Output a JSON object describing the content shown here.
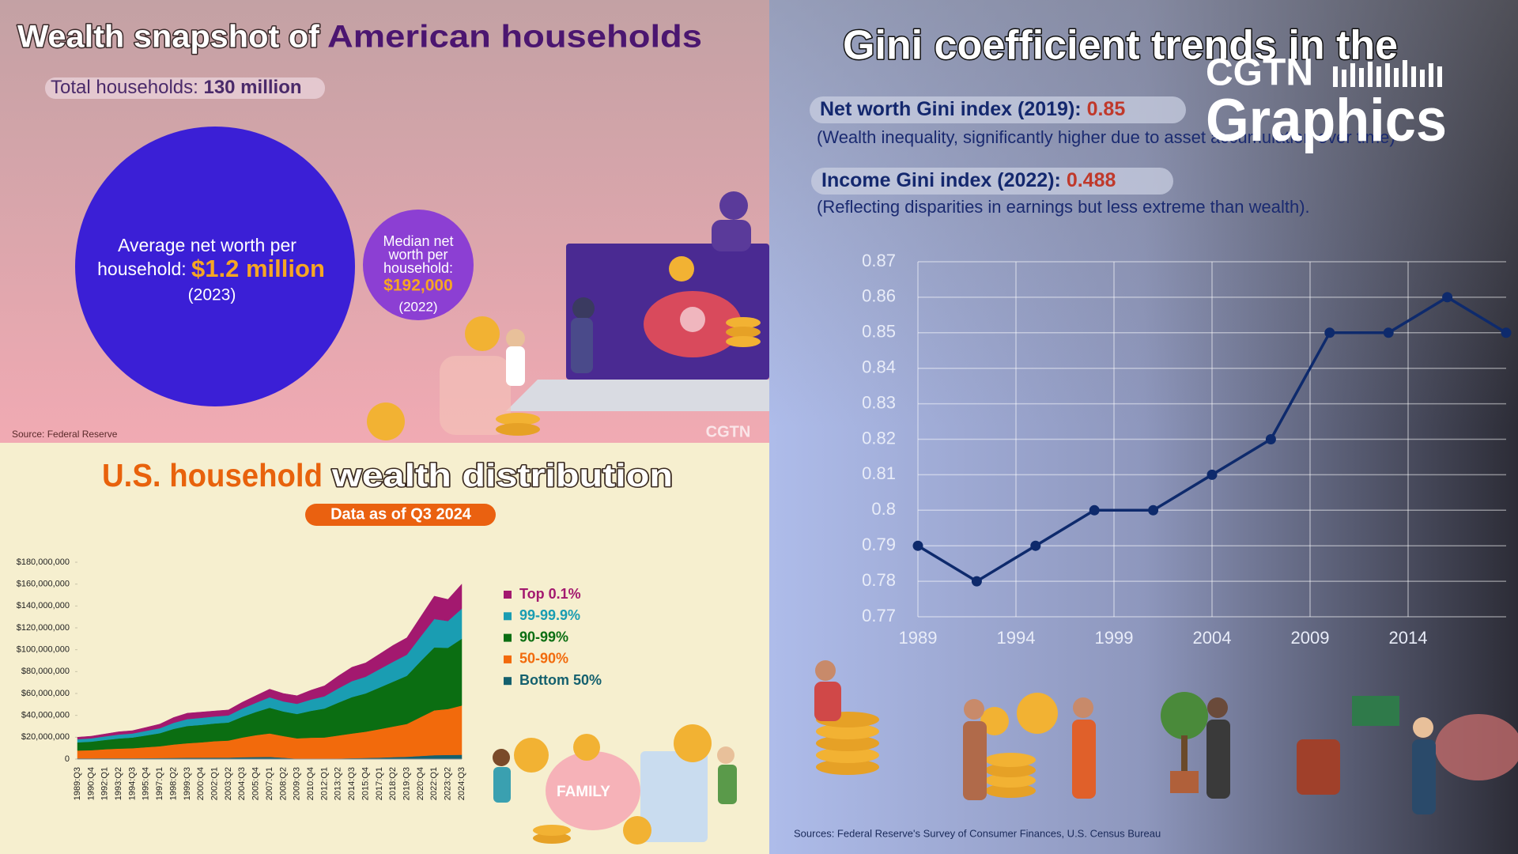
{
  "wealth_snapshot": {
    "title_part1": "Wealth snapshot of",
    "title_part2": "American households",
    "total_label": "Total households:",
    "total_value": "130 million",
    "average_label": [
      "Average net worth per",
      "household:"
    ],
    "average_value": "$1.2 million",
    "average_year": "(2023)",
    "median_label": [
      "Median net",
      "worth per",
      "household:"
    ],
    "median_value": "$192,000",
    "median_year": "(2022)",
    "source": "Source: Federal Reserve",
    "watermark": "CGTN"
  },
  "distribution": {
    "title_part1": "U.S. household",
    "title_part2": "wealth distribution",
    "subtitle": "Data as of Q3 2024",
    "illustration_label": "FAMILY"
  },
  "gini": {
    "title": "Gini coefficient trends in the",
    "net_worth_label": "Net worth Gini index (2019):",
    "net_worth_value": 0.85,
    "net_worth_note": "(Wealth inequality, significantly higher due to asset accumulation over time)",
    "income_label": "Income Gini index (2022):",
    "income_value": 0.488,
    "income_note": "(Reflecting disparities in earnings but less extreme than wealth).",
    "source": "Sources: Federal Reserve's Survey of Consumer Finances, U.S. Census Bureau"
  },
  "branding": {
    "line1": "CGTN",
    "line2": "Graphics"
  },
  "chart_data": [
    {
      "type": "stacked_area",
      "categories": [
        "1989:Q3",
        "1990:Q4",
        "1992:Q1",
        "1993:Q2",
        "1994:Q3",
        "1995:Q4",
        "1997:Q1",
        "1998:Q2",
        "1999:Q3",
        "2000:Q4",
        "2002:Q1",
        "2003:Q2",
        "2004:Q3",
        "2005:Q4",
        "2007:Q1",
        "2008:Q2",
        "2009:Q3",
        "2010:Q4",
        "2012:Q1",
        "2013:Q2",
        "2014:Q3",
        "2015:Q4",
        "2017:Q1",
        "2018:Q2",
        "2019:Q3",
        "2020:Q4",
        "2022:Q1",
        "2023:Q2",
        "2024:Q3"
      ],
      "series": [
        {
          "name": "Top 0.1%",
          "color": "#a3196f",
          "values": [
            1800000,
            2000000,
            2200000,
            2500000,
            2600000,
            3100000,
            3700000,
            4800000,
            5400000,
            5300000,
            5000000,
            5000000,
            5800000,
            6500000,
            7500000,
            7200000,
            7400000,
            8600000,
            9500000,
            11400000,
            12700000,
            12700000,
            13800000,
            15000000,
            15500000,
            18100000,
            20900000,
            19700000,
            22500000
          ]
        },
        {
          "name": "99-99.9%",
          "color": "#1a9db2",
          "values": [
            2900000,
            3000000,
            3300000,
            3600000,
            3700000,
            4200000,
            4600000,
            5600000,
            6300000,
            6400000,
            6400000,
            6500000,
            7500000,
            8400000,
            9500000,
            9200000,
            9300000,
            10300000,
            11200000,
            13000000,
            14600000,
            15200000,
            16800000,
            18200000,
            19300000,
            22500000,
            26000000,
            24500000,
            27500000
          ]
        },
        {
          "name": "90-99%",
          "color": "#0b6e12",
          "values": [
            7400000,
            7800000,
            8500000,
            9300000,
            9700000,
            10800000,
            11900000,
            14200000,
            15800000,
            16000000,
            16200000,
            16500000,
            19000000,
            21200000,
            23500000,
            22500000,
            22300000,
            24500000,
            26500000,
            30000000,
            33300000,
            35000000,
            38000000,
            41000000,
            44000000,
            51000000,
            57500000,
            56000000,
            61000000
          ]
        },
        {
          "name": "50-90%",
          "color": "#f26a0c",
          "values": [
            7200000,
            7500000,
            8200000,
            8800000,
            9200000,
            10000000,
            10800000,
            12300000,
            13300000,
            14000000,
            15000000,
            15600000,
            18000000,
            20000000,
            21500000,
            19800000,
            18600000,
            19300000,
            19500000,
            21000000,
            22500000,
            24000000,
            26000000,
            28000000,
            30000000,
            35500000,
            41000000,
            42000000,
            45000000
          ]
        },
        {
          "name": "Bottom 50%",
          "color": "#14606e",
          "values": [
            700000,
            700000,
            800000,
            800000,
            800000,
            900000,
            1000000,
            1100000,
            1200000,
            1300000,
            1400000,
            1400000,
            1700000,
            1900000,
            2000000,
            1300000,
            400000,
            300000,
            300000,
            600000,
            900000,
            1100000,
            1400000,
            1800000,
            2200000,
            2900000,
            3600000,
            3800000,
            4000000
          ]
        }
      ],
      "ylim": [
        0,
        180000000
      ],
      "yticks": [
        0,
        {
          "value": 20000000,
          "label": "$20,000,000"
        },
        {
          "value": 40000000,
          "label": "$40,000,000"
        },
        {
          "value": 60000000,
          "label": "$60,000,000"
        },
        {
          "value": 80000000,
          "label": "$80,000,000"
        },
        {
          "value": 100000000,
          "label": "$100,000,000"
        },
        {
          "value": 120000000,
          "label": "$120,000,000"
        },
        {
          "value": 140000000,
          "label": "$140,000,000"
        },
        {
          "value": 160000000,
          "label": "$160,000,000"
        },
        {
          "value": 180000000,
          "label": "$180,000,000"
        }
      ],
      "grid": false,
      "legend": "right"
    },
    {
      "type": "line",
      "x": [
        1989,
        1992,
        1995,
        1998,
        2001,
        2004,
        2007,
        2010,
        2013,
        2016,
        2019
      ],
      "values": [
        0.79,
        0.78,
        0.79,
        0.8,
        0.8,
        0.81,
        0.82,
        0.85,
        0.85,
        0.86,
        0.85
      ],
      "color": "#0e2a6c",
      "xlim": [
        1989,
        2019
      ],
      "xticks": [
        1989,
        1994,
        1999,
        2004,
        2009,
        2014
      ],
      "ylim": [
        0.77,
        0.87
      ],
      "yticks": [
        0.77,
        0.78,
        0.79,
        0.8,
        0.81,
        0.82,
        0.83,
        0.84,
        0.85,
        0.86,
        0.87
      ],
      "grid": true
    }
  ]
}
